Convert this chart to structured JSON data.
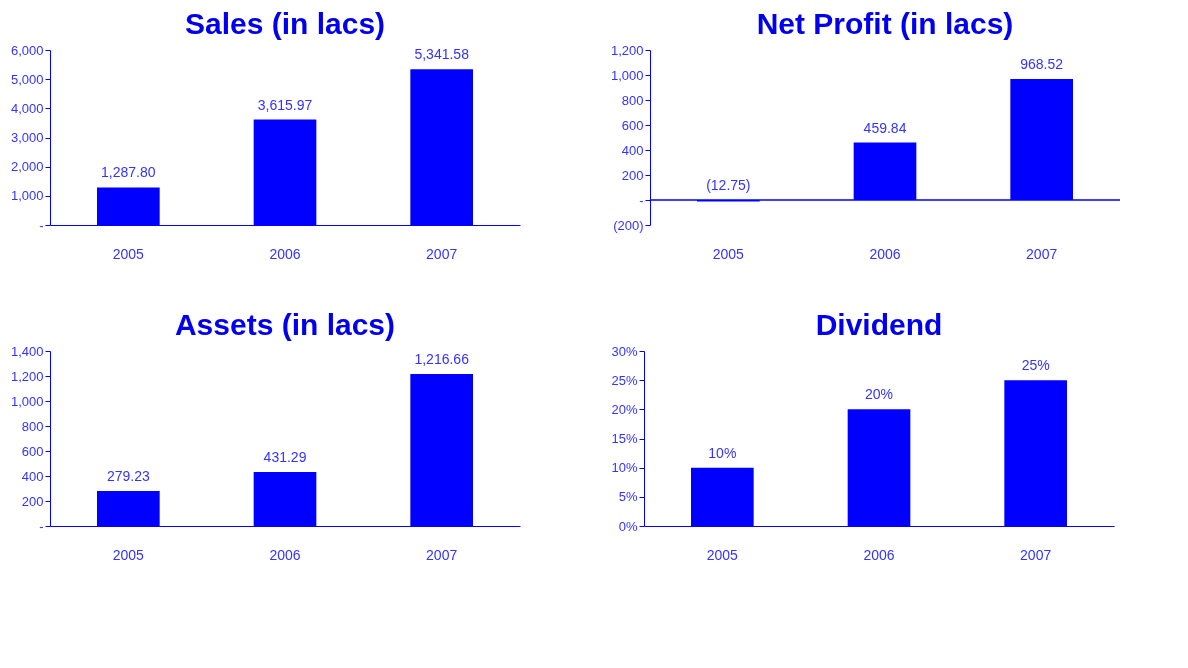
{
  "chart_data": [
    {
      "type": "bar",
      "title": "Sales (in lacs)",
      "categories": [
        "2005",
        "2006",
        "2007"
      ],
      "values": [
        1287.8,
        3615.97,
        5341.58
      ],
      "color": "#0000ff",
      "value_labels": [
        "1,287.80",
        "3,615.97",
        "5,341.58"
      ],
      "ylim": [
        0,
        6000
      ],
      "yticks": [
        {
          "value": 0,
          "label": "-"
        },
        {
          "value": 1000,
          "label": "1,000"
        },
        {
          "value": 2000,
          "label": "2,000"
        },
        {
          "value": 3000,
          "label": "3,000"
        },
        {
          "value": 4000,
          "label": "4,000"
        },
        {
          "value": 5000,
          "label": "5,000"
        },
        {
          "value": 6000,
          "label": "6,000"
        }
      ],
      "grid": false
    },
    {
      "type": "bar",
      "title": "Net Profit (in lacs)",
      "categories": [
        "2005",
        "2006",
        "2007"
      ],
      "values": [
        -12.75,
        459.84,
        968.52
      ],
      "color": "#0000ff",
      "value_labels": [
        "(12.75)",
        "459.84",
        "968.52"
      ],
      "ylim": [
        -200,
        1200
      ],
      "yticks": [
        {
          "value": -200,
          "label": "(200)"
        },
        {
          "value": 0,
          "label": "-"
        },
        200,
        400,
        600,
        800,
        {
          "value": 1000,
          "label": "1,000"
        },
        {
          "value": 1200,
          "label": "1,200"
        }
      ],
      "grid": false,
      "ref_lines": [
        {
          "axis": "y",
          "value": 0,
          "color": "#0000ff"
        }
      ]
    },
    {
      "type": "bar",
      "title": "Assets (in lacs)",
      "categories": [
        "2005",
        "2006",
        "2007"
      ],
      "values": [
        279.23,
        431.29,
        1216.66
      ],
      "color": "#0000ff",
      "value_labels": [
        "279.23",
        "431.29",
        "1,216.66"
      ],
      "ylim": [
        0,
        1400
      ],
      "yticks": [
        {
          "value": 0,
          "label": "-"
        },
        200,
        400,
        600,
        800,
        {
          "value": 1000,
          "label": "1,000"
        },
        {
          "value": 1200,
          "label": "1,200"
        },
        {
          "value": 1400,
          "label": "1,400"
        }
      ],
      "grid": false
    },
    {
      "type": "bar",
      "title": "Dividend",
      "categories": [
        "2005",
        "2006",
        "2007"
      ],
      "values": [
        10,
        20,
        25
      ],
      "color": "#0000ff",
      "value_labels": [
        "10%",
        "20%",
        "25%"
      ],
      "ylim": [
        0,
        30
      ],
      "yticks": [
        {
          "value": 0,
          "label": "0%"
        },
        {
          "value": 5,
          "label": "5%"
        },
        {
          "value": 10,
          "label": "10%"
        },
        {
          "value": 15,
          "label": "15%"
        },
        {
          "value": 20,
          "label": "20%"
        },
        {
          "value": 25,
          "label": "25%"
        },
        {
          "value": 30,
          "label": "30%"
        }
      ],
      "grid": false
    }
  ]
}
